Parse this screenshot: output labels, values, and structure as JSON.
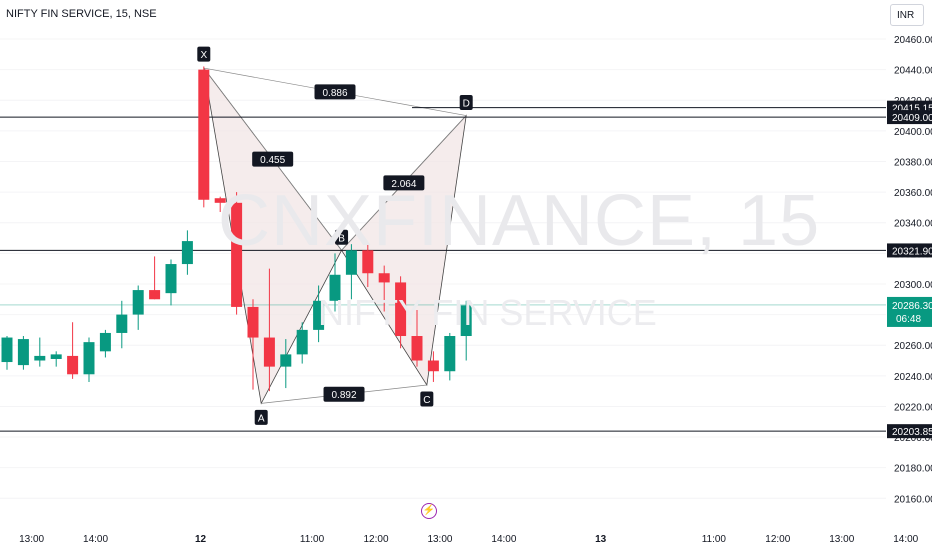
{
  "header": {
    "symbol_title": "NIFTY FIN SERVICE, 15, NSE",
    "currency": "INR"
  },
  "watermark": {
    "ticker": "CNXFINANCE, 15",
    "name": "NIFTY FIN SERVICE"
  },
  "icons": {
    "event_marker": "lightning-icon"
  },
  "colors": {
    "up": "#089981",
    "down": "#f23645",
    "pattern_fill": "#f2e6e6",
    "line": "#131722",
    "last_price": "#089981"
  },
  "chart_data": {
    "type": "candlestick",
    "ylim": [
      20150,
      20480
    ],
    "y_ticks": [
      20160,
      20180,
      20200,
      20220,
      20240,
      20260,
      20280,
      20300,
      20320,
      20340,
      20360,
      20380,
      20400,
      20420,
      20440,
      20460
    ],
    "y_tick_labels": [
      "20160.00",
      "20180.00",
      "20200.00",
      "20220.00",
      "20240.00",
      "20260.00",
      "20280.00",
      "20300.00",
      "20320.00",
      "20340.00",
      "20360.00",
      "20380.00",
      "20400.00",
      "20420.00",
      "20440.00",
      "20460.00"
    ],
    "x_tick_labels": [
      {
        "i": 1.5,
        "label": "13:00"
      },
      {
        "i": 5.4,
        "label": "14:00"
      },
      {
        "i": 11.8,
        "label": "12"
      },
      {
        "i": 18.6,
        "label": "11:00"
      },
      {
        "i": 22.5,
        "label": "12:00"
      },
      {
        "i": 26.4,
        "label": "13:00"
      },
      {
        "i": 30.3,
        "label": "14:00"
      },
      {
        "i": 36.2,
        "label": "13"
      },
      {
        "i": 43.1,
        "label": "11:00"
      },
      {
        "i": 47.0,
        "label": "12:00"
      },
      {
        "i": 50.9,
        "label": "13:00"
      },
      {
        "i": 54.8,
        "label": "14:00"
      }
    ],
    "candles": [
      {
        "o": 20249,
        "h": 20266,
        "l": 20244,
        "c": 20265
      },
      {
        "o": 20247,
        "h": 20266,
        "l": 20244,
        "c": 20264
      },
      {
        "o": 20250,
        "h": 20265,
        "l": 20246,
        "c": 20253
      },
      {
        "o": 20251,
        "h": 20256,
        "l": 20246,
        "c": 20254
      },
      {
        "o": 20253,
        "h": 20275,
        "l": 20238,
        "c": 20241
      },
      {
        "o": 20241,
        "h": 20265,
        "l": 20236,
        "c": 20262
      },
      {
        "o": 20256,
        "h": 20270,
        "l": 20252,
        "c": 20268
      },
      {
        "o": 20268,
        "h": 20289,
        "l": 20258,
        "c": 20280
      },
      {
        "o": 20280,
        "h": 20299,
        "l": 20270,
        "c": 20296
      },
      {
        "o": 20296,
        "h": 20318,
        "l": 20290,
        "c": 20290
      },
      {
        "o": 20294,
        "h": 20316,
        "l": 20286,
        "c": 20313
      },
      {
        "o": 20313,
        "h": 20335,
        "l": 20306,
        "c": 20328
      },
      {
        "o": 20440,
        "h": 20442,
        "l": 20350,
        "c": 20355
      },
      {
        "o": 20356,
        "h": 20357,
        "l": 20347,
        "c": 20353
      },
      {
        "o": 20353,
        "h": 20360,
        "l": 20280,
        "c": 20285
      },
      {
        "o": 20285,
        "h": 20290,
        "l": 20231,
        "c": 20265
      },
      {
        "o": 20265,
        "h": 20310,
        "l": 20230,
        "c": 20246
      },
      {
        "o": 20246,
        "h": 20264,
        "l": 20232,
        "c": 20254
      },
      {
        "o": 20254,
        "h": 20275,
        "l": 20248,
        "c": 20270
      },
      {
        "o": 20270,
        "h": 20299,
        "l": 20262,
        "c": 20289
      },
      {
        "o": 20289,
        "h": 20320,
        "l": 20282,
        "c": 20306
      },
      {
        "o": 20306,
        "h": 20326,
        "l": 20290,
        "c": 20322
      },
      {
        "o": 20322,
        "h": 20326,
        "l": 20298,
        "c": 20307
      },
      {
        "o": 20307,
        "h": 20312,
        "l": 20282,
        "c": 20301
      },
      {
        "o": 20301,
        "h": 20305,
        "l": 20258,
        "c": 20266
      },
      {
        "o": 20266,
        "h": 20283,
        "l": 20246,
        "c": 20250
      },
      {
        "o": 20250,
        "h": 20256,
        "l": 20236,
        "c": 20243
      },
      {
        "o": 20243,
        "h": 20268,
        "l": 20237,
        "c": 20266
      },
      {
        "o": 20266,
        "h": 20289,
        "l": 20250,
        "c": 20286
      }
    ],
    "pattern": {
      "points": [
        {
          "label": "X",
          "i": 12,
          "price": 20441
        },
        {
          "label": "A",
          "i": 15.5,
          "price": 20222
        },
        {
          "label": "B",
          "i": 20.4,
          "price": 20322
        },
        {
          "label": "C",
          "i": 25.6,
          "price": 20234
        },
        {
          "label": "D",
          "i": 28.0,
          "price": 20410
        }
      ],
      "ratios": [
        {
          "between": "X-D",
          "value": "0.886"
        },
        {
          "between": "X-B",
          "value": "0.455"
        },
        {
          "between": "B-D",
          "value": "2.064"
        },
        {
          "between": "A-C",
          "value": "0.892"
        }
      ]
    },
    "horizontal_lines": [
      {
        "price": 20415.15,
        "label": "20415.15",
        "style": "black"
      },
      {
        "price": 20409.0,
        "label": "20409.00",
        "style": "black"
      },
      {
        "price": 20321.9,
        "label": "20321.90",
        "style": "black"
      },
      {
        "price": 20203.85,
        "label": "20203.85",
        "style": "black"
      }
    ],
    "last_price": {
      "price": 20286.3,
      "label": "20286.30",
      "countdown": "06:48"
    }
  }
}
